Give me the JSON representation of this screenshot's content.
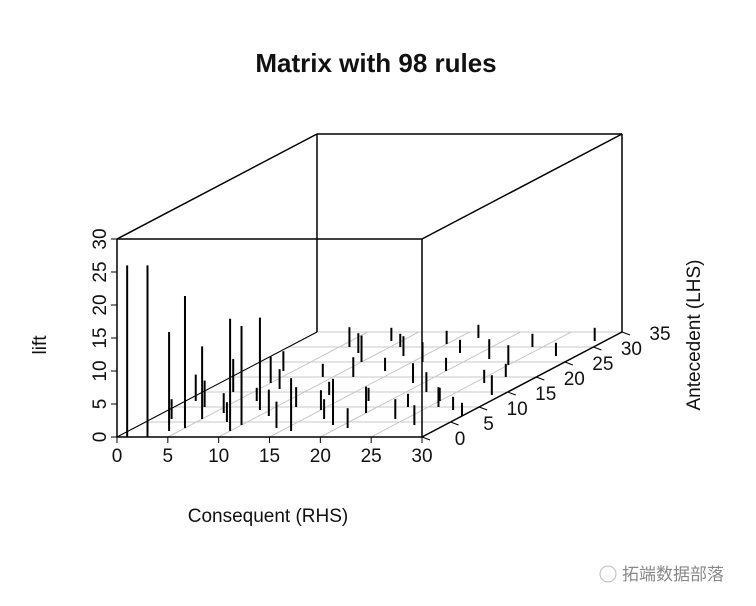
{
  "chart_data": {
    "type": "matrix3d",
    "title": "Matrix with 98 rules",
    "x_label": "Consequent (RHS)",
    "y_label": "Antecedent (LHS)",
    "z_label": "lift",
    "xlim": [
      0,
      30
    ],
    "ylim": [
      0,
      35
    ],
    "zlim": [
      0,
      30
    ],
    "xticks": [
      0,
      5,
      10,
      15,
      20,
      25,
      30
    ],
    "yticks": [
      0,
      5,
      10,
      15,
      20,
      25,
      30,
      35
    ],
    "zticks": [
      0,
      5,
      10,
      15,
      20,
      25,
      30
    ],
    "grid": true,
    "color": "#000000",
    "x": [
      1,
      3,
      5,
      4,
      10,
      10,
      9,
      5,
      16,
      19,
      2,
      3,
      6,
      7,
      8,
      11,
      12,
      13,
      14,
      15,
      17,
      18,
      20,
      21,
      22,
      23,
      24,
      25,
      26,
      27,
      28,
      29,
      30,
      12,
      14,
      16,
      18,
      19,
      20,
      22,
      24,
      25,
      27,
      28,
      29,
      10,
      8,
      6,
      9,
      11,
      13,
      15,
      17,
      4,
      5,
      3,
      1,
      7,
      9,
      26
    ],
    "y": [
      0,
      0,
      3,
      2,
      2,
      4,
      9,
      6,
      2,
      4,
      6,
      10,
      8,
      12,
      5,
      7,
      10,
      14,
      3,
      9,
      6,
      12,
      8,
      3,
      15,
      10,
      6,
      12,
      18,
      4,
      9,
      14,
      7,
      20,
      22,
      25,
      28,
      18,
      22,
      26,
      30,
      24,
      20,
      27,
      32,
      25,
      28,
      30,
      32,
      30,
      27,
      31,
      33,
      22,
      18,
      15,
      12,
      16,
      20,
      10
    ],
    "values": [
      26,
      26,
      20,
      15,
      17,
      15,
      14,
      11,
      8,
      7,
      3,
      4,
      3,
      2,
      3,
      4,
      3,
      2,
      4,
      3,
      3,
      2,
      4,
      3,
      3,
      2,
      3,
      2,
      2,
      3,
      2,
      3,
      2,
      3,
      2,
      3,
      2,
      3,
      2,
      3,
      2,
      3,
      2,
      2,
      2,
      4,
      3,
      3,
      2,
      2,
      3,
      2,
      2,
      3,
      4,
      5,
      4,
      3,
      2,
      3
    ],
    "watermark": "拓端数据部落"
  }
}
